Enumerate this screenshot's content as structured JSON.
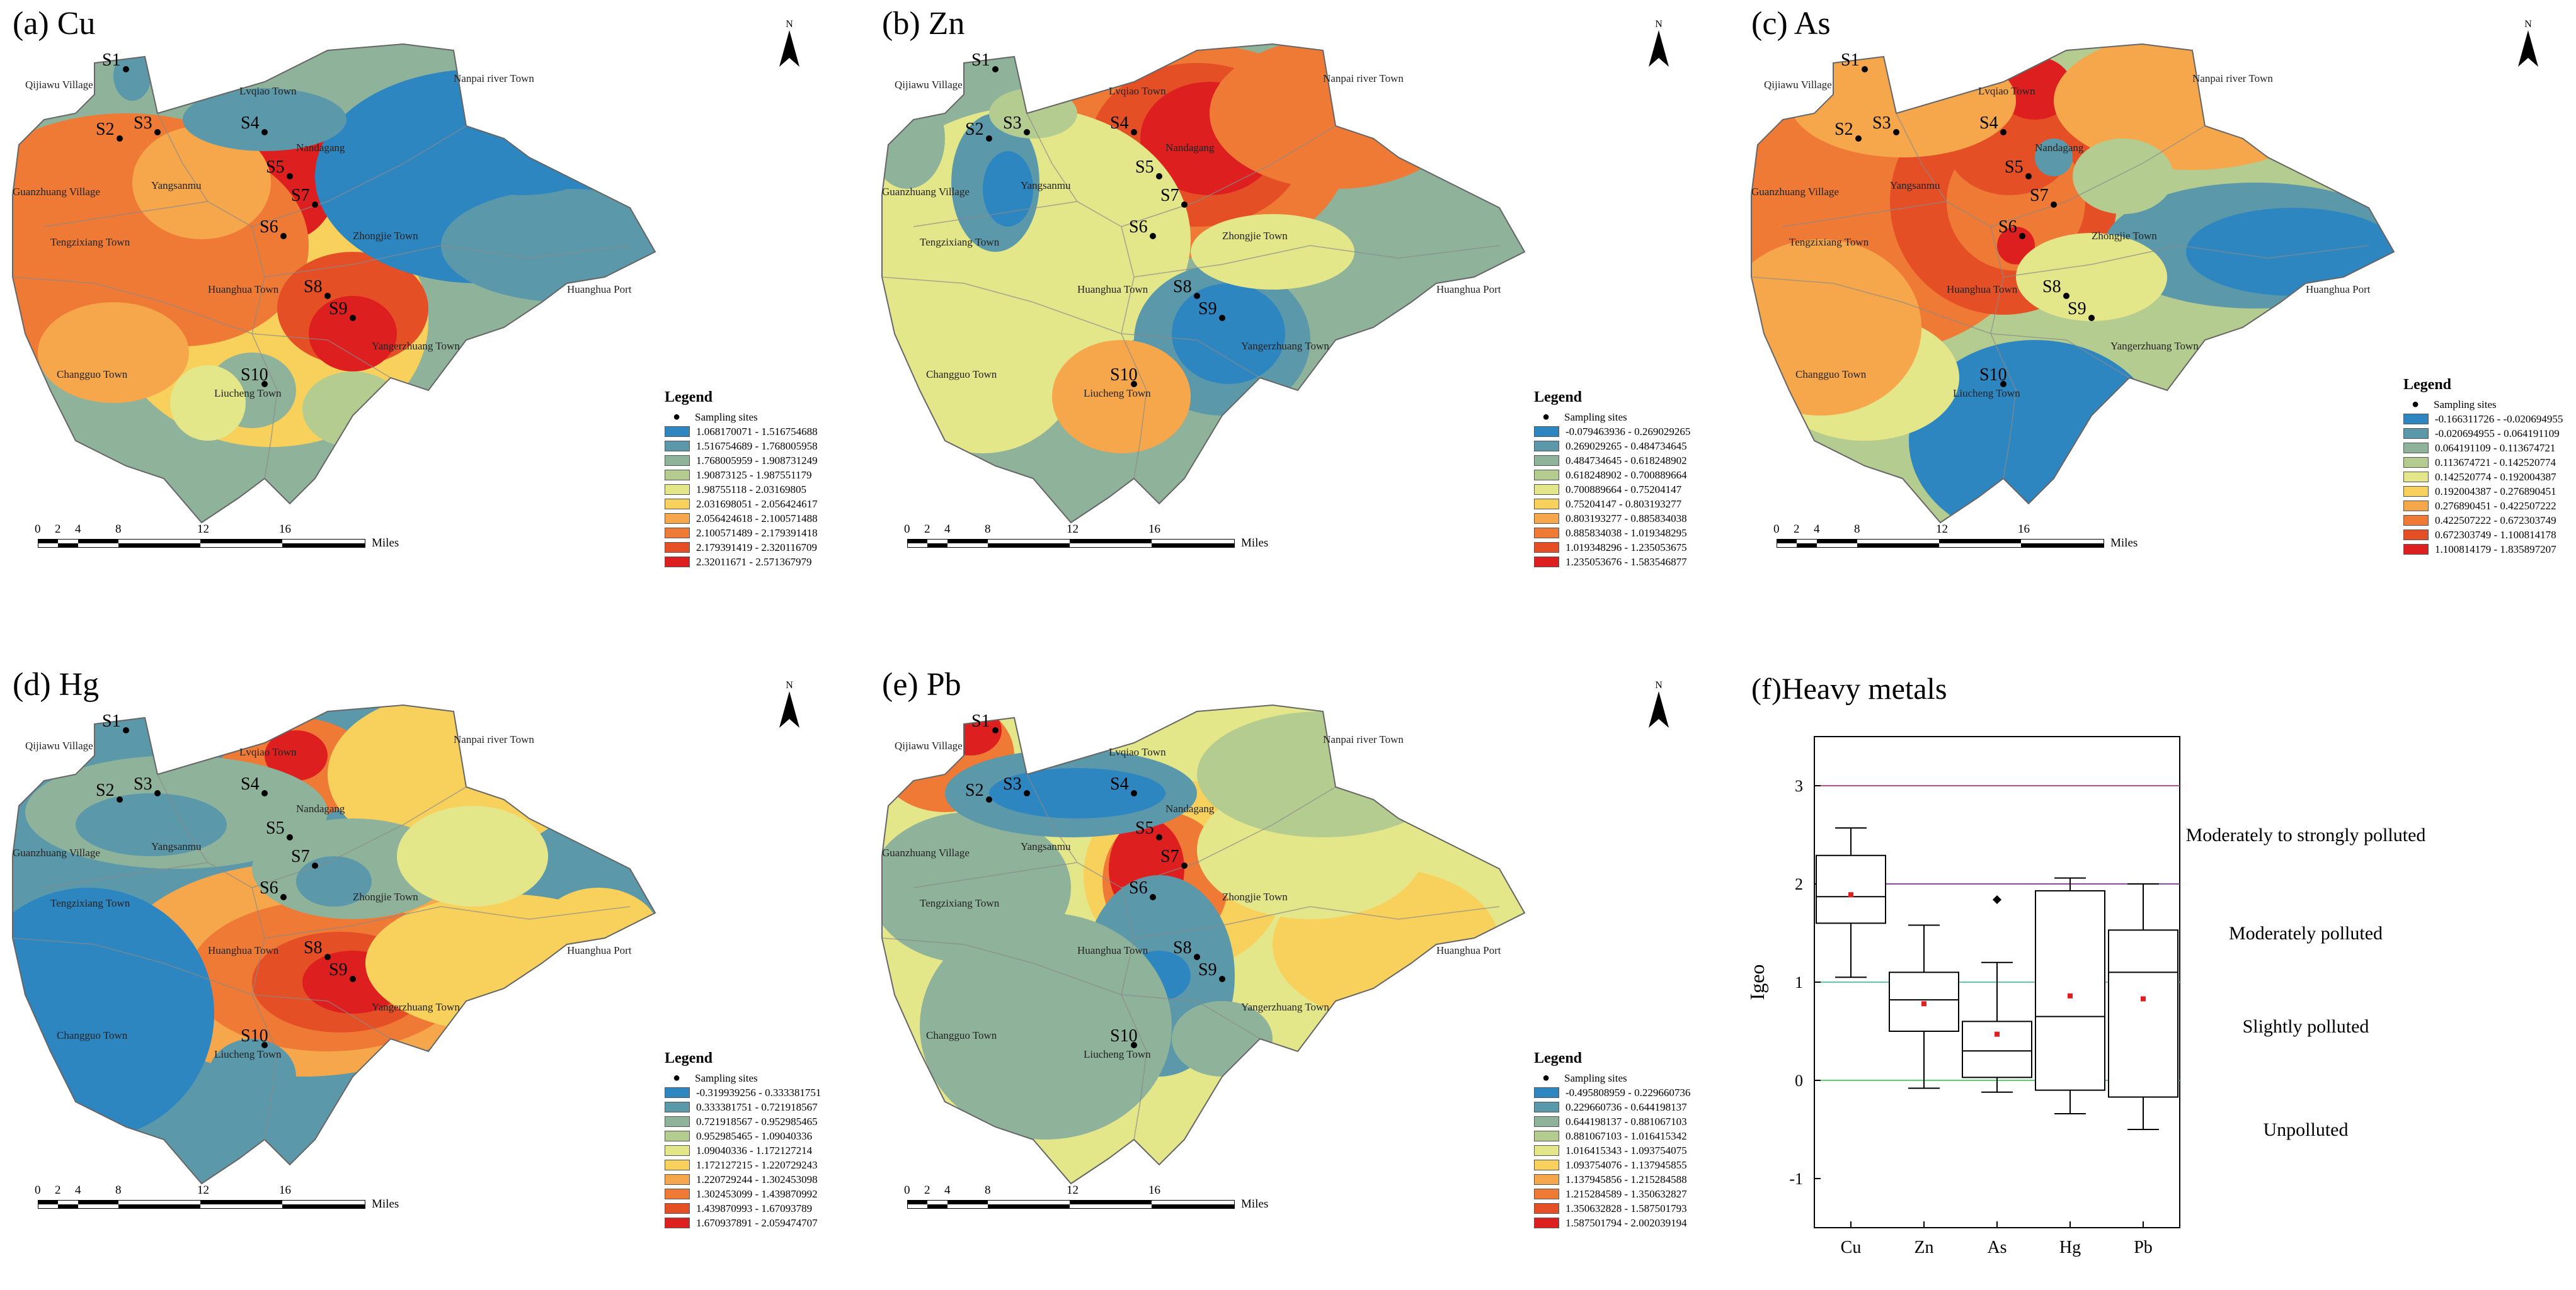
{
  "panels": [
    {
      "title": "(a) Cu",
      "legend_title": "Legend",
      "sites_label": "Sampling sites",
      "ranges": [
        "1.068170071 - 1.516754688",
        "1.516754689 - 1.768005958",
        "1.768005959 - 1.908731249",
        "1.90873125 - 1.987551179",
        "1.98755118 - 2.03169805",
        "2.031698051 - 2.056424617",
        "2.056424618 - 2.100571488",
        "2.100571489 - 2.179391418",
        "2.179391419 - 2.320116709",
        "2.32011671 - 2.571367979"
      ]
    },
    {
      "title": "(b) Zn",
      "legend_title": "Legend",
      "sites_label": "Sampling sites",
      "ranges": [
        "-0.079463936 - 0.269029265",
        "0.269029265 - 0.484734645",
        "0.484734645 - 0.618248902",
        "0.618248902 - 0.700889664",
        "0.700889664 - 0.75204147",
        "0.75204147 - 0.803193277",
        "0.803193277 - 0.885834038",
        "0.885834038 - 1.019348295",
        "1.019348296 - 1.235053675",
        "1.235053676 - 1.583546877"
      ]
    },
    {
      "title": "(c) As",
      "legend_title": "Legend",
      "sites_label": "Sampling sites",
      "ranges": [
        "-0.166311726 - -0.020694955",
        "-0.020694955 - 0.064191109",
        "0.064191109 - 0.113674721",
        "0.113674721 - 0.142520774",
        "0.142520774 - 0.192004387",
        "0.192004387 - 0.276890451",
        "0.276890451 - 0.422507222",
        "0.422507222 - 0.672303749",
        "0.672303749 - 1.100814178",
        "1.100814179 - 1.835897207"
      ]
    },
    {
      "title": "(d) Hg",
      "legend_title": "Legend",
      "sites_label": "Sampling sites",
      "ranges": [
        "-0.319939256 - 0.333381751",
        "0.333381751 - 0.721918567",
        "0.721918567 - 0.952985465",
        "0.952985465 - 1.09040336",
        "1.09040336 - 1.172127214",
        "1.172127215 - 1.220729243",
        "1.220729244 - 1.302453098",
        "1.302453099 - 1.439870992",
        "1.439870993 - 1.67093789",
        "1.670937891 - 2.059474707"
      ]
    },
    {
      "title": "(e) Pb",
      "legend_title": "Legend",
      "sites_label": "Sampling sites",
      "ranges": [
        "-0.495808959 - 0.229660736",
        "0.229660736 - 0.644198137",
        "0.644198137 - 0.881067103",
        "0.881067103 - 1.016415342",
        "1.016415343 - 1.093754075",
        "1.093754076 - 1.137945855",
        "1.137945856 - 1.215284588",
        "1.215284589 - 1.350632827",
        "1.350632828 - 1.587501793",
        "1.587501794 - 2.002039194"
      ]
    }
  ],
  "sites": [
    "S1",
    "S2",
    "S3",
    "S4",
    "S5",
    "S6",
    "S7",
    "S8",
    "S9",
    "S10"
  ],
  "places": [
    "Qijiawu Village",
    "Lvqiao Town",
    "Nanpai river Town",
    "Nandagang",
    "Guanzhuang Village",
    "Yangsanmu",
    "Tengzixiang Town",
    "Zhongjie Town",
    "Huanghua Town",
    "Huanghua Port",
    "Yangerzhuang Town",
    "Changguo Town",
    "Liucheng Town"
  ],
  "scalebar": {
    "ticks": [
      "0",
      "2",
      "4",
      "8",
      "12",
      "16"
    ],
    "unit": "Miles"
  },
  "north": "N",
  "palette": [
    "#2e86c1",
    "#5b99aa",
    "#8fb29a",
    "#b5cc90",
    "#e4e68a",
    "#f8d15d",
    "#f6a74b",
    "#ee7a35",
    "#e44f26",
    "#de1f1f"
  ],
  "chart_data": {
    "type": "box",
    "title": "(f)Heavy metals",
    "ylabel": "Igeo",
    "ylim": [
      -1.5,
      3.5
    ],
    "yticks": [
      -1,
      0,
      1,
      2,
      3
    ],
    "categories": [
      "Cu",
      "Zn",
      "As",
      "Hg",
      "Pb"
    ],
    "boxes": [
      {
        "name": "Cu",
        "min": 1.05,
        "q1": 1.6,
        "median": 1.87,
        "q3": 2.29,
        "max": 2.57,
        "mean": 1.89,
        "outliers": []
      },
      {
        "name": "Zn",
        "min": -0.08,
        "q1": 0.5,
        "median": 0.82,
        "q3": 1.1,
        "max": 1.58,
        "mean": 0.78,
        "outliers": []
      },
      {
        "name": "As",
        "min": -0.12,
        "q1": 0.03,
        "median": 0.3,
        "q3": 0.6,
        "max": 1.2,
        "mean": 0.47,
        "outliers": [
          1.84
        ]
      },
      {
        "name": "Hg",
        "min": -0.34,
        "q1": -0.1,
        "median": 0.65,
        "q3": 1.93,
        "max": 2.06,
        "mean": 0.86,
        "outliers": []
      },
      {
        "name": "Pb",
        "min": -0.5,
        "q1": -0.17,
        "median": 1.1,
        "q3": 1.53,
        "max": 2.0,
        "mean": 0.83,
        "outliers": []
      }
    ],
    "reference_lines": [
      {
        "value": 3,
        "color": "#c04a8a"
      },
      {
        "value": 2,
        "color": "#8e44ad"
      },
      {
        "value": 1,
        "color": "#5fc9a8"
      },
      {
        "value": 0,
        "color": "#58d26a"
      }
    ],
    "zones": [
      {
        "label": "Moderately to strongly polluted",
        "y": 2.5
      },
      {
        "label": "Moderately polluted",
        "y": 1.5
      },
      {
        "label": "Slightly polluted",
        "y": 0.55
      },
      {
        "label": "Unpolluted",
        "y": -0.5
      }
    ]
  }
}
